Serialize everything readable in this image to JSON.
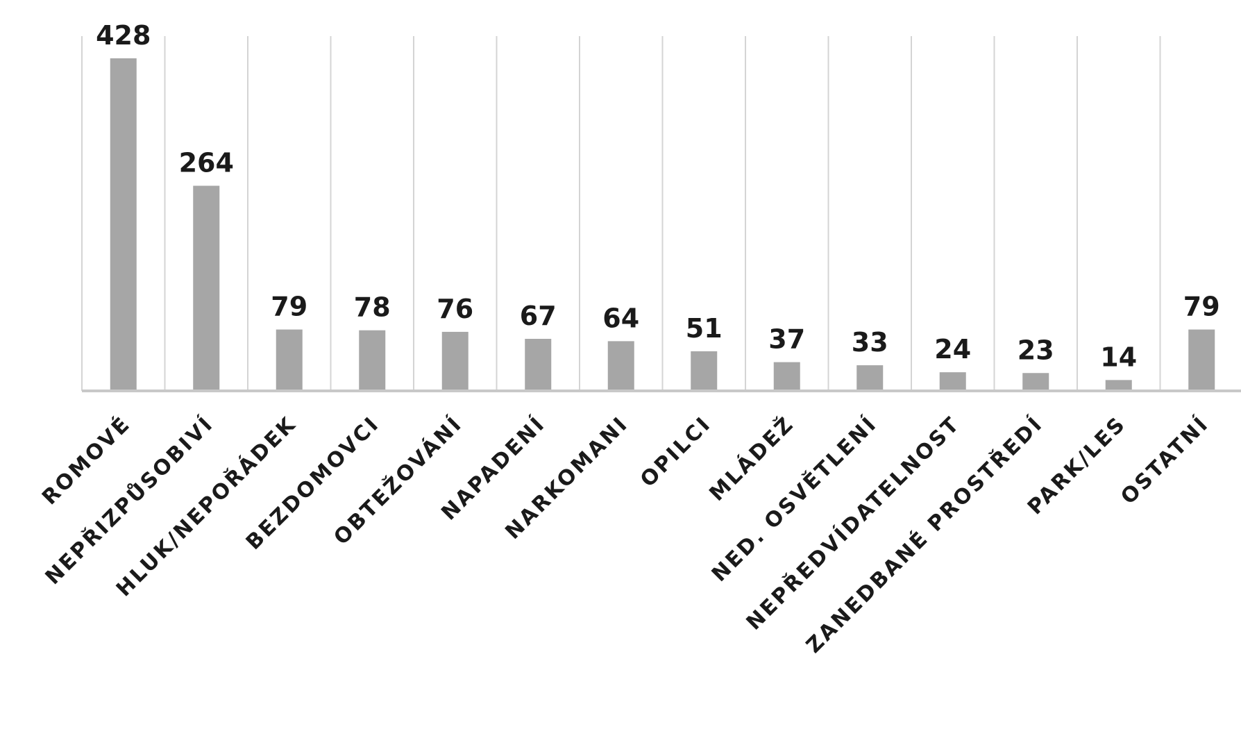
{
  "chart_data": {
    "type": "bar",
    "title": "",
    "xlabel": "",
    "ylabel": "",
    "categories": [
      "ROMOVÉ",
      "NEPŘIZPŮSOBIVÍ",
      "HLUK/NEPOŘÁDEK",
      "BEZDOMOVCI",
      "OBTEŽOVÁNÍ",
      "NAPADENÍ",
      "NARKOMANI",
      "OPILCI",
      "MLÁDEŽ",
      "NED. OSVĚTLENÍ",
      "NEPŘEDVÍDATELNOST",
      "ZANEDBANÉ PROSTŘEDÍ",
      "PARK/LES",
      "OSTATNÍ"
    ],
    "values": [
      428,
      264,
      79,
      78,
      76,
      67,
      64,
      51,
      37,
      33,
      24,
      23,
      14,
      79
    ],
    "value_labels": [
      "428",
      "264",
      "79",
      "78",
      "76",
      "67",
      "64",
      "51",
      "37",
      "33",
      "24",
      "23",
      "14",
      "79"
    ],
    "ylim": [
      0,
      450
    ],
    "bar_color": "#a6a6a6",
    "grid": "vertical category separators",
    "legend": "none"
  }
}
